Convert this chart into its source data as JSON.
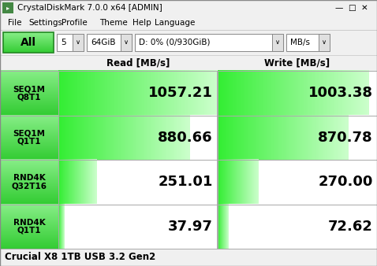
{
  "title_bar": "CrystalDiskMark 7.0.0 x64 [ADMIN]",
  "menu_items": [
    "File",
    "Settings",
    "Profile",
    "Theme",
    "Help",
    "Language"
  ],
  "toolbar": {
    "all_label": "All",
    "count": "5",
    "size": "64GiB",
    "drive": "D: 0% (0/930GiB)",
    "unit": "MB/s"
  },
  "col_headers": [
    "Read [MB/s]",
    "Write [MB/s]"
  ],
  "rows": [
    {
      "label_line1": "SEQ1M",
      "label_line2": "Q8T1",
      "read": "1057.21",
      "write": "1003.38",
      "read_bar": 1.0,
      "write_bar": 0.95
    },
    {
      "label_line1": "SEQ1M",
      "label_line2": "Q1T1",
      "read": "880.66",
      "write": "870.78",
      "read_bar": 0.83,
      "write_bar": 0.82
    },
    {
      "label_line1": "RND4K",
      "label_line2": "Q32T16",
      "read": "251.01",
      "write": "270.00",
      "read_bar": 0.24,
      "write_bar": 0.255
    },
    {
      "label_line1": "RND4K",
      "label_line2": "Q1T1",
      "read": "37.97",
      "write": "72.62",
      "read_bar": 0.036,
      "write_bar": 0.069
    }
  ],
  "footer": "Crucial X8 1TB USB 3.2 Gen2",
  "bg_color": "#f0f0f0",
  "green_btn": "#44dd44",
  "green_btn_edge": "#228822",
  "label_cell_top": "#aaffaa",
  "label_cell_bottom": "#44dd44",
  "bar_green_left": "#44ee44",
  "bar_green_right": "#ccffcc",
  "white": "#ffffff",
  "black": "#000000"
}
